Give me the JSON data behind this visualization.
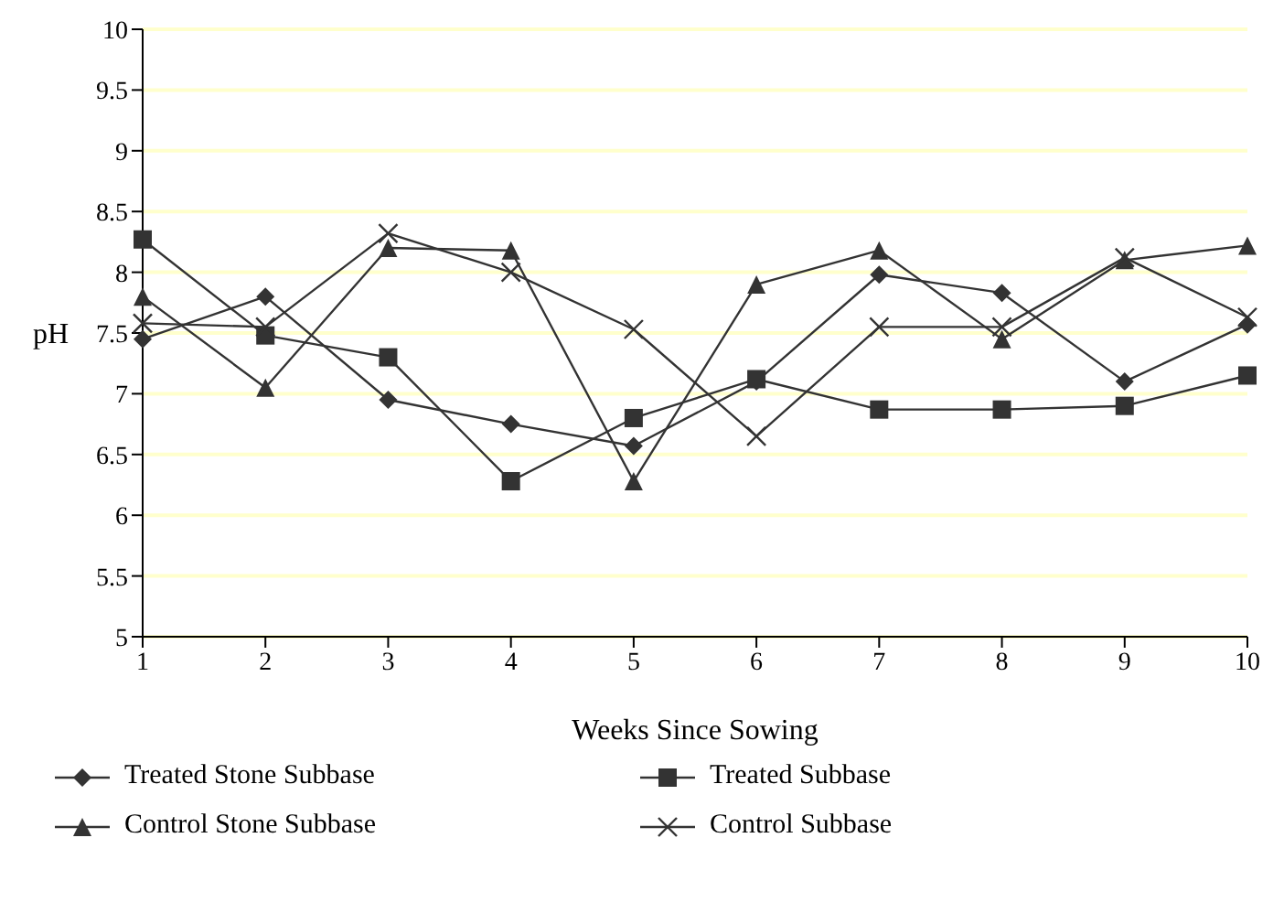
{
  "chart_data": {
    "type": "line",
    "xlabel": "Weeks Since Sowing",
    "ylabel": "pH",
    "categories": [
      "1",
      "2",
      "3",
      "4",
      "5",
      "6",
      "7",
      "8",
      "9",
      "10"
    ],
    "ylim": [
      5,
      10
    ],
    "yticks": [
      5,
      {
        "value": 5.5,
        "label": "5.5"
      },
      6,
      {
        "value": 6.5,
        "label": "6.5"
      },
      7,
      {
        "value": 7.5,
        "label": "7.5"
      },
      8,
      {
        "value": 8.5,
        "label": "8.5"
      },
      9,
      {
        "value": 9.5,
        "label": "9.5"
      },
      10
    ],
    "grid": "y",
    "legend": "bottom",
    "line_style": "solid",
    "series": [
      {
        "name": "Treated Stone Subbase",
        "color": "#333333",
        "marker": "diamond",
        "values": [
          7.45,
          7.8,
          6.95,
          6.75,
          6.57,
          7.1,
          7.98,
          7.83,
          7.1,
          7.57
        ]
      },
      {
        "name": "Treated Subbase",
        "color": "#333333",
        "marker": "square",
        "values": [
          8.27,
          7.48,
          7.3,
          6.28,
          6.8,
          7.12,
          6.87,
          6.87,
          6.9,
          7.15
        ]
      },
      {
        "name": "Control Stone Subbase",
        "color": "#333333",
        "marker": "triangle",
        "values": [
          7.8,
          7.05,
          8.2,
          8.18,
          6.28,
          7.9,
          8.18,
          7.45,
          8.1,
          8.22
        ]
      },
      {
        "name": "Control Subbase",
        "color": "#333333",
        "marker": "cross",
        "values": [
          7.58,
          7.55,
          8.32,
          8.0,
          7.53,
          6.65,
          7.55,
          7.55,
          8.12,
          7.63
        ]
      }
    ]
  }
}
